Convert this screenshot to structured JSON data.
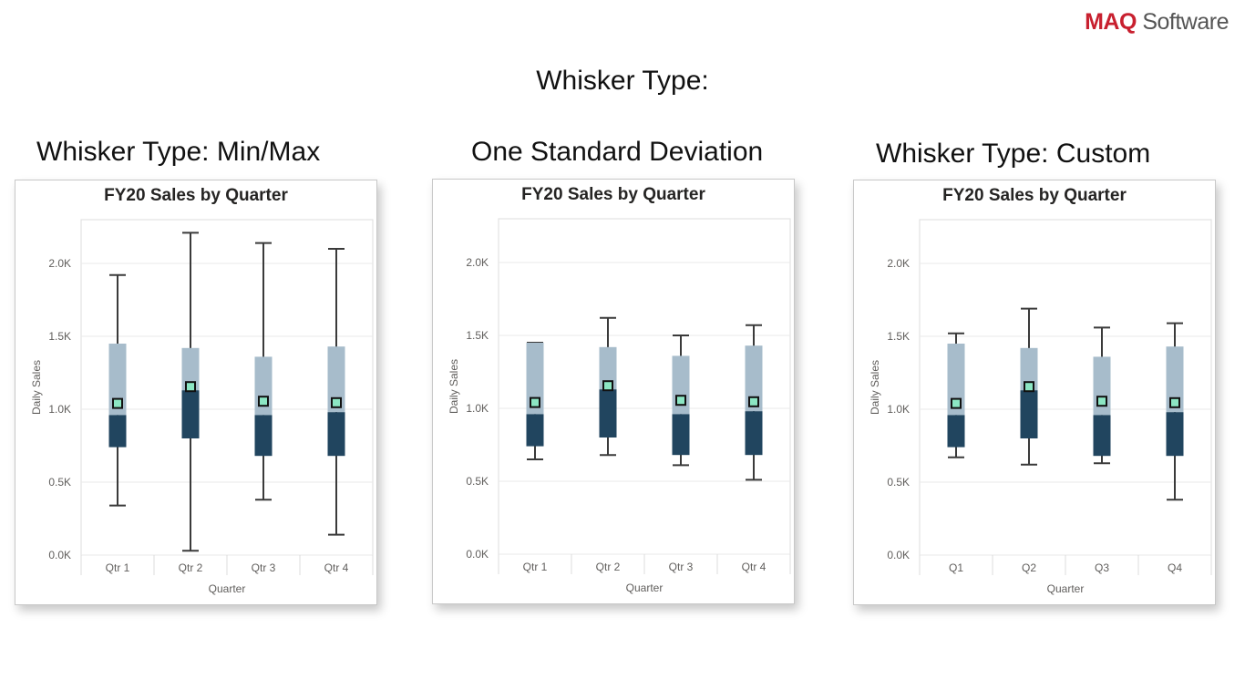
{
  "logo": {
    "brand": "MAQ",
    "suffix": " Software"
  },
  "slide_title": "Whisker Type:",
  "panels": [
    {
      "heading": "Whisker Type: Min/Max"
    },
    {
      "heading": "One Standard Deviation"
    },
    {
      "heading": "Whisker Type: Custom"
    }
  ],
  "colors": {
    "upper_box": "#a7bccb",
    "lower_box": "#21455f",
    "whisker": "#3a3a3a",
    "mean_fill": "#8ce6c3",
    "mean_stroke": "#111111",
    "grid": "#e9e9e9",
    "frame": "#dddddd"
  },
  "chart_data": [
    {
      "type": "box",
      "title": "FY20 Sales by Quarter",
      "xlabel": "Quarter",
      "ylabel": "Daily Sales",
      "ylim": [
        0,
        2300
      ],
      "yticks": [
        "0.0K",
        "0.5K",
        "1.0K",
        "1.5K",
        "2.0K"
      ],
      "ytick_values": [
        0,
        500,
        1000,
        1500,
        2000
      ],
      "categories": [
        "Qtr 1",
        "Qtr 2",
        "Qtr 3",
        "Qtr 4"
      ],
      "boxes": [
        {
          "q1": 740,
          "median": 960,
          "q3": 1450,
          "mean": 1040,
          "whisker_low": 340,
          "whisker_high": 1920
        },
        {
          "q1": 800,
          "median": 1130,
          "q3": 1420,
          "mean": 1155,
          "whisker_low": 30,
          "whisker_high": 2210
        },
        {
          "q1": 680,
          "median": 960,
          "q3": 1360,
          "mean": 1055,
          "whisker_low": 380,
          "whisker_high": 2140
        },
        {
          "q1": 680,
          "median": 980,
          "q3": 1430,
          "mean": 1045,
          "whisker_low": 140,
          "whisker_high": 2100
        }
      ]
    },
    {
      "type": "box",
      "title": "FY20 Sales by Quarter",
      "xlabel": "Quarter",
      "ylabel": "Daily Sales",
      "ylim": [
        0,
        2300
      ],
      "yticks": [
        "0.0K",
        "0.5K",
        "1.0K",
        "1.5K",
        "2.0K"
      ],
      "ytick_values": [
        0,
        500,
        1000,
        1500,
        2000
      ],
      "categories": [
        "Qtr 1",
        "Qtr 2",
        "Qtr 3",
        "Qtr 4"
      ],
      "boxes": [
        {
          "q1": 740,
          "median": 960,
          "q3": 1450,
          "mean": 1040,
          "whisker_low": 650,
          "whisker_high": 1450
        },
        {
          "q1": 800,
          "median": 1130,
          "q3": 1420,
          "mean": 1155,
          "whisker_low": 680,
          "whisker_high": 1620
        },
        {
          "q1": 680,
          "median": 960,
          "q3": 1360,
          "mean": 1055,
          "whisker_low": 610,
          "whisker_high": 1500
        },
        {
          "q1": 680,
          "median": 980,
          "q3": 1430,
          "mean": 1045,
          "whisker_low": 510,
          "whisker_high": 1570
        }
      ]
    },
    {
      "type": "box",
      "title": "FY20 Sales by Quarter",
      "xlabel": "Quarter",
      "ylabel": "Daily Sales",
      "ylim": [
        0,
        2300
      ],
      "yticks": [
        "0.0K",
        "0.5K",
        "1.0K",
        "1.5K",
        "2.0K"
      ],
      "ytick_values": [
        0,
        500,
        1000,
        1500,
        2000
      ],
      "categories": [
        "Q1",
        "Q2",
        "Q3",
        "Q4"
      ],
      "boxes": [
        {
          "q1": 740,
          "median": 960,
          "q3": 1450,
          "mean": 1040,
          "whisker_low": 670,
          "whisker_high": 1520
        },
        {
          "q1": 800,
          "median": 1130,
          "q3": 1420,
          "mean": 1155,
          "whisker_low": 620,
          "whisker_high": 1690
        },
        {
          "q1": 680,
          "median": 960,
          "q3": 1360,
          "mean": 1055,
          "whisker_low": 630,
          "whisker_high": 1560
        },
        {
          "q1": 680,
          "median": 980,
          "q3": 1430,
          "mean": 1045,
          "whisker_low": 380,
          "whisker_high": 1590
        }
      ]
    }
  ]
}
